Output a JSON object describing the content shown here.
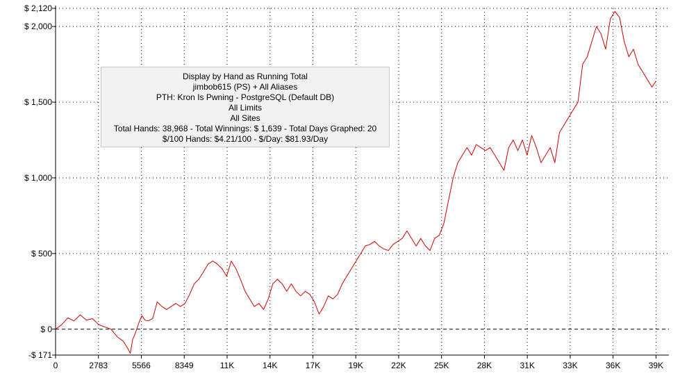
{
  "chart_data": {
    "type": "line",
    "title": "",
    "xlabel": "",
    "ylabel": "",
    "xlim": [
      0,
      39800
    ],
    "ylim": [
      -171,
      2120
    ],
    "grid": true,
    "line_color": "#cc0000",
    "zero_line_color": "#000000",
    "y_ticks": [
      {
        "value": 2120,
        "label": "$ 2,120"
      },
      {
        "value": 2000,
        "label": "$ 2,000"
      },
      {
        "value": 1500,
        "label": "$ 1,500"
      },
      {
        "value": 1000,
        "label": "$ 1,000"
      },
      {
        "value": 500,
        "label": "$ 500"
      },
      {
        "value": 0,
        "label": "$ 0"
      },
      {
        "value": -171,
        "label": "-$ 171"
      }
    ],
    "x_ticks": [
      {
        "value": 0,
        "label": "0"
      },
      {
        "value": 2783,
        "label": "2783"
      },
      {
        "value": 5566,
        "label": "5566"
      },
      {
        "value": 8349,
        "label": "8349"
      },
      {
        "value": 11132,
        "label": "11K"
      },
      {
        "value": 13915,
        "label": "14K"
      },
      {
        "value": 16698,
        "label": "17K"
      },
      {
        "value": 19481,
        "label": "19K"
      },
      {
        "value": 22264,
        "label": "22K"
      },
      {
        "value": 25047,
        "label": "25K"
      },
      {
        "value": 27830,
        "label": "28K"
      },
      {
        "value": 30613,
        "label": "31K"
      },
      {
        "value": 33396,
        "label": "33K"
      },
      {
        "value": 36179,
        "label": "36K"
      },
      {
        "value": 38962,
        "label": "39K"
      }
    ],
    "series": [
      {
        "x": [
          0,
          400,
          800,
          1200,
          1600,
          2000,
          2400,
          2800,
          3200,
          3600,
          4000,
          4400,
          4700,
          4850,
          5000,
          5200,
          5400,
          5600,
          5800,
          6000,
          6300,
          6600,
          6900,
          7200,
          7500,
          7800,
          8100,
          8400,
          8700,
          9000,
          9300,
          9600,
          9900,
          10200,
          10500,
          10800,
          11100,
          11400,
          11700,
          12000,
          12300,
          12600,
          12900,
          13200,
          13500,
          13800,
          14100,
          14400,
          14700,
          15000,
          15300,
          15600,
          15900,
          16200,
          16500,
          16800,
          17100,
          17400,
          17700,
          18000,
          18300,
          18600,
          18900,
          19200,
          19500,
          19800,
          20100,
          20400,
          20700,
          21000,
          21300,
          21600,
          21900,
          22200,
          22500,
          22800,
          23100,
          23400,
          23700,
          24000,
          24300,
          24600,
          24900,
          25200,
          25500,
          25800,
          26100,
          26400,
          26700,
          27000,
          27300,
          27600,
          27900,
          28200,
          28500,
          28800,
          29100,
          29400,
          29700,
          30000,
          30300,
          30600,
          30900,
          31200,
          31500,
          31800,
          32100,
          32400,
          32700,
          33000,
          33300,
          33600,
          33900,
          34200,
          34500,
          34800,
          35100,
          35400,
          35700,
          36000,
          36300,
          36600,
          36900,
          37200,
          37500,
          37800,
          38100,
          38400,
          38700,
          38962
        ],
        "values": [
          0,
          30,
          75,
          55,
          95,
          60,
          70,
          30,
          15,
          0,
          -50,
          -80,
          -130,
          -160,
          -70,
          -20,
          40,
          90,
          60,
          55,
          70,
          180,
          150,
          130,
          150,
          170,
          150,
          170,
          230,
          300,
          330,
          380,
          430,
          450,
          430,
          400,
          350,
          450,
          400,
          330,
          250,
          200,
          150,
          170,
          130,
          200,
          300,
          330,
          300,
          250,
          300,
          250,
          220,
          250,
          230,
          180,
          100,
          150,
          220,
          200,
          230,
          300,
          350,
          400,
          450,
          500,
          550,
          560,
          580,
          550,
          530,
          520,
          560,
          580,
          600,
          650,
          600,
          550,
          600,
          550,
          520,
          600,
          620,
          700,
          850,
          1000,
          1100,
          1150,
          1200,
          1150,
          1220,
          1200,
          1180,
          1200,
          1150,
          1100,
          1050,
          1200,
          1250,
          1180,
          1250,
          1150,
          1280,
          1200,
          1100,
          1150,
          1200,
          1100,
          1300,
          1350,
          1400,
          1450,
          1500,
          1750,
          1800,
          1900,
          2000,
          1950,
          1850,
          2050,
          2100,
          2060,
          1900,
          1800,
          1850,
          1750,
          1700,
          1650,
          1600,
          1639
        ]
      }
    ]
  },
  "info_box": {
    "lines": [
      "Display by Hand as Running Total",
      "jimbob615 (PS) + All Aliases",
      "PTH: Kron Is Pwning - PostgreSQL (Default DB)",
      "All Limits",
      "All Sites",
      "Total Hands: 38,968 - Total Winnings: $ 1,639 - Total Days Graphed: 20",
      "$/100 Hands: $4.21/100 - $/Day: $81.93/Day"
    ]
  }
}
